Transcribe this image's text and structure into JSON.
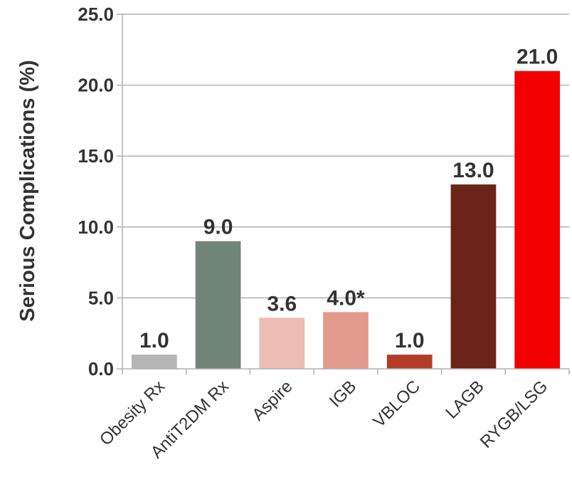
{
  "chart_data": {
    "type": "bar",
    "title": "",
    "xlabel": "",
    "ylabel": "Serious Complications (%)",
    "ylim": [
      0,
      25
    ],
    "yticks": [
      0,
      5,
      10,
      15,
      20,
      25
    ],
    "ytick_labels": [
      "0.0",
      "5.0",
      "10.0",
      "15.0",
      "20.0",
      "25.0"
    ],
    "grid": true,
    "categories": [
      "Obesity Rx",
      "AntiT2DM Rx",
      "Aspire",
      "IGB",
      "VBLOC",
      "LAGB",
      "RYGB/LSG"
    ],
    "values": [
      1.0,
      9.0,
      3.6,
      4.0,
      1.0,
      13.0,
      21.0
    ],
    "data_labels": [
      "1.0",
      "9.0",
      "3.6",
      "4.0*",
      "1.0",
      "13.0",
      "21.0"
    ],
    "colors": [
      "#b5b5b5",
      "#718478",
      "#edbcb3",
      "#e29a8c",
      "#b33c28",
      "#6a2518",
      "#f20000"
    ],
    "axis_color": "#b0b0b0",
    "text_color": "#333333"
  }
}
